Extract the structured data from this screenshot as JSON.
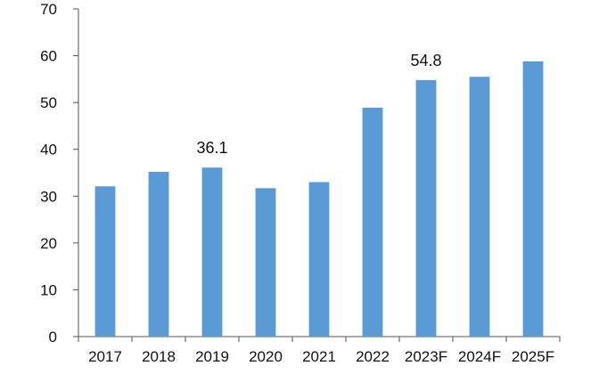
{
  "chart_data": {
    "type": "bar",
    "title": "",
    "xlabel": "",
    "ylabel": "",
    "categories": [
      "2017",
      "2018",
      "2019",
      "2020",
      "2021",
      "2022",
      "2023F",
      "2024F",
      "2025F"
    ],
    "values": [
      32.1,
      35.2,
      36.1,
      31.7,
      33.0,
      48.9,
      54.8,
      55.5,
      58.8
    ],
    "data_labels": [
      {
        "category": "2019",
        "text": "36.1"
      },
      {
        "category": "2023F",
        "text": "54.8"
      }
    ],
    "ylim": [
      0,
      70
    ],
    "yticks": [
      0,
      10,
      20,
      30,
      40,
      50,
      60,
      70
    ],
    "bar_color": "#5b9bd5",
    "grid": false,
    "legend": "none"
  }
}
